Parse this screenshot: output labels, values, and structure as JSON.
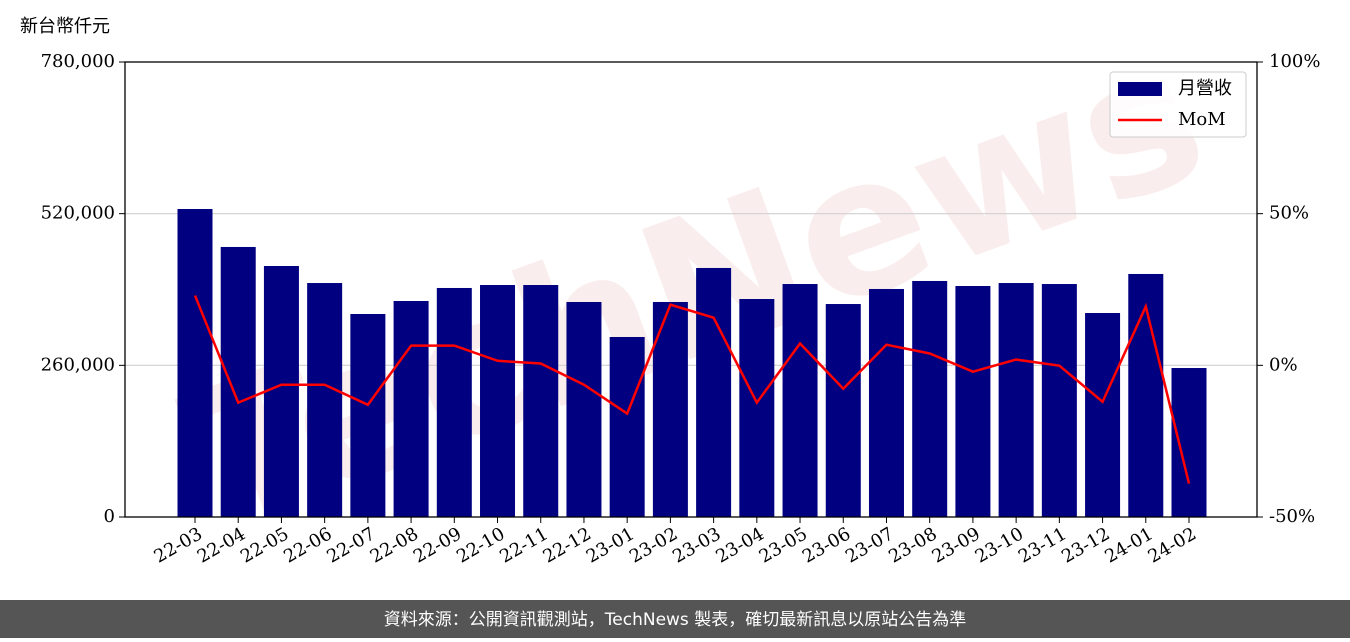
{
  "chart_data": {
    "type": "bar",
    "y_axis_label": "新台幣仟元",
    "watermark": "TechNews",
    "footer": "資料來源：公開資訊觀測站，TechNews 製表，確切最新訊息以原站公告為準",
    "categories": [
      "22-03",
      "22-04",
      "22-05",
      "22-06",
      "22-07",
      "22-08",
      "22-09",
      "22-10",
      "22-11",
      "22-12",
      "23-01",
      "23-02",
      "23-03",
      "23-04",
      "23-05",
      "23-06",
      "23-07",
      "23-08",
      "23-09",
      "23-10",
      "23-11",
      "23-12",
      "24-01",
      "24-02"
    ],
    "series": [
      {
        "name": "月營收",
        "type": "bar",
        "color": "#000080",
        "values": [
          528000,
          462900,
          430300,
          401100,
          348000,
          370300,
          392600,
          397700,
          397700,
          368600,
          308600,
          368600,
          426900,
          373700,
          399400,
          365100,
          390900,
          404600,
          396000,
          401100,
          399400,
          349700,
          416600,
          255400
        ]
      },
      {
        "name": "MoM",
        "type": "line",
        "color": "#ff0000",
        "axis": "y2",
        "values": [
          23,
          -12.3,
          -6.4,
          -6.4,
          -13,
          6.5,
          6.5,
          1.5,
          0.6,
          -6.4,
          -15.9,
          20,
          15.7,
          -12.3,
          7.2,
          -7.7,
          6.8,
          3.9,
          -2.1,
          1.9,
          -0.1,
          -12,
          19.4,
          -39
        ]
      }
    ],
    "ylim": [
      0,
      780000
    ],
    "yticks": [
      0,
      {
        "value": 260000,
        "label": "260,000"
      },
      {
        "value": 520000,
        "label": "520,000"
      },
      {
        "value": 780000,
        "label": "780,000"
      }
    ],
    "y2lim": [
      -50,
      100
    ],
    "y2ticks": [
      {
        "value": -50,
        "label": "-50%"
      },
      {
        "value": 0,
        "label": "0%"
      },
      {
        "value": 50,
        "label": "50%"
      },
      {
        "value": 100,
        "label": "100%"
      }
    ],
    "grid": true,
    "legend": "upper right"
  }
}
